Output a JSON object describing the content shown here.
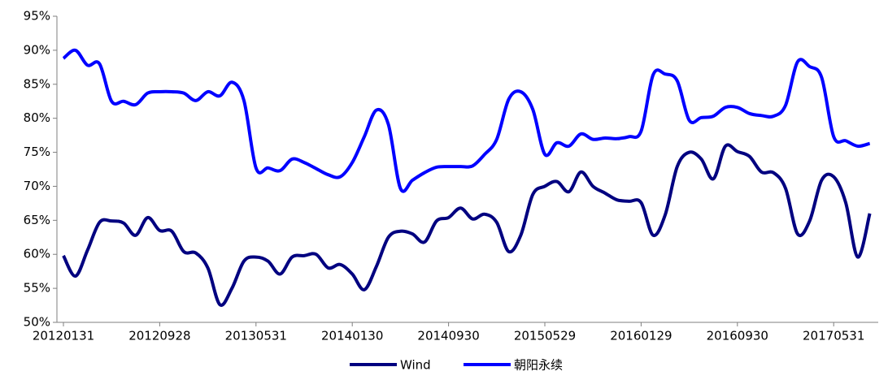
{
  "chart_data": {
    "type": "line",
    "categories": [
      "20120131",
      null,
      null,
      null,
      null,
      null,
      null,
      null,
      "20120928",
      null,
      null,
      null,
      null,
      null,
      null,
      null,
      "20130531",
      null,
      null,
      null,
      null,
      null,
      null,
      null,
      "20140130",
      null,
      null,
      null,
      null,
      null,
      null,
      null,
      "20140930",
      null,
      null,
      null,
      null,
      null,
      null,
      null,
      "20150529",
      null,
      null,
      null,
      null,
      null,
      null,
      null,
      "20160129",
      null,
      null,
      null,
      null,
      null,
      null,
      null,
      "20160930",
      null,
      null,
      null,
      null,
      null,
      null,
      null,
      "20170531",
      null,
      null,
      null
    ],
    "series": [
      {
        "name": "Wind",
        "color": "#000080",
        "values": [
          59.8,
          56.8,
          60.6,
          64.7,
          64.9,
          64.6,
          62.8,
          65.4,
          63.5,
          63.4,
          60.4,
          60.2,
          58,
          52.6,
          55,
          59,
          59.6,
          59,
          57.1,
          59.6,
          59.8,
          60,
          58,
          58.5,
          57.1,
          54.8,
          58.2,
          62.5,
          63.4,
          63,
          61.8,
          64.9,
          65.4,
          66.8,
          65.2,
          65.9,
          64.7,
          60.4,
          62.8,
          68.8,
          70,
          70.7,
          69.2,
          72.1,
          70,
          69,
          68,
          67.8,
          67.6,
          62.8,
          65.8,
          72.9,
          75,
          74,
          71.1,
          75.9,
          75.1,
          74.4,
          72.1,
          72,
          69.7,
          63,
          64.9,
          70.9,
          71.4,
          67.6,
          59.6,
          66
        ]
      },
      {
        "name": "朝阳永续",
        "color": "#0000ff",
        "values": [
          88.8,
          90,
          87.8,
          88,
          82.5,
          82.5,
          82,
          83.7,
          83.9,
          83.9,
          83.7,
          82.6,
          83.9,
          83.3,
          85.3,
          82.6,
          72.7,
          72.7,
          72.3,
          74,
          73.5,
          72.6,
          71.7,
          71.4,
          73.5,
          77.3,
          81.2,
          79.1,
          69.7,
          70.9,
          72,
          72.8,
          72.9,
          72.9,
          73,
          74.7,
          76.9,
          82.8,
          83.9,
          81.3,
          74.7,
          76.4,
          75.9,
          77.7,
          76.9,
          77.1,
          77,
          77.3,
          78.1,
          86.4,
          86.5,
          85.5,
          79.7,
          80.1,
          80.3,
          81.6,
          81.6,
          80.7,
          80.4,
          80.3,
          81.9,
          88.3,
          87.6,
          86,
          77.3,
          76.7,
          75.9,
          76.3
        ]
      }
    ],
    "ylim": [
      50,
      95
    ],
    "yticks": [
      {
        "value": 50,
        "label": "50%"
      },
      {
        "value": 55,
        "label": "55%"
      },
      {
        "value": 60,
        "label": "60%"
      },
      {
        "value": 65,
        "label": "65%"
      },
      {
        "value": 70,
        "label": "70%"
      },
      {
        "value": 75,
        "label": "75%"
      },
      {
        "value": 80,
        "label": "80%"
      },
      {
        "value": 85,
        "label": "85%"
      },
      {
        "value": 90,
        "label": "90%"
      },
      {
        "value": 95,
        "label": "95%"
      }
    ],
    "grid": false,
    "legend": "bottom"
  }
}
